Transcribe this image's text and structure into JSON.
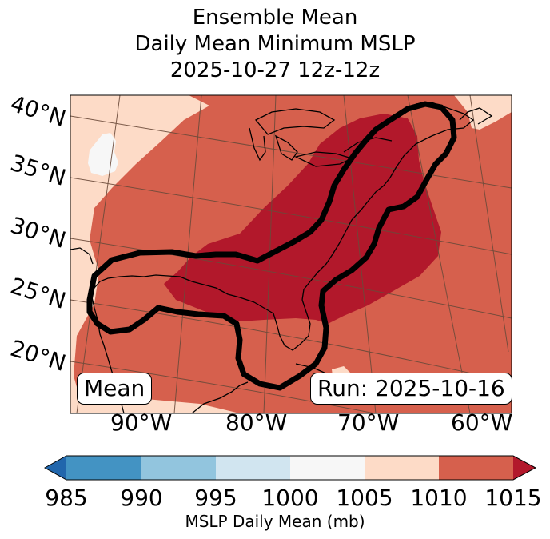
{
  "title": {
    "line1": "Ensemble Mean",
    "line2": "Daily Mean Minimum MSLP",
    "line3": "2025-10-27 12z-12z"
  },
  "map": {
    "latitude_labels": [
      "40°N",
      "35°N",
      "30°N",
      "25°N",
      "20°N"
    ],
    "longitude_labels": [
      "90°W",
      "80°W",
      "70°W",
      "60°W"
    ],
    "mean_label": "Mean",
    "run_label": "Run: 2025-10-16",
    "colors": {
      "c985": "#2166ac",
      "c990": "#4393c3",
      "c995": "#92c5de",
      "c1000": "#d1e5f0",
      "c1005": "#f7f7f7",
      "c1010": "#fddbc7",
      "c1015": "#d6604d",
      "cover": "#b2182b"
    }
  },
  "colorbar": {
    "ticks": [
      "985",
      "990",
      "995",
      "1000",
      "1005",
      "1010",
      "1015"
    ],
    "label": "MSLP Daily Mean (mb)"
  }
}
